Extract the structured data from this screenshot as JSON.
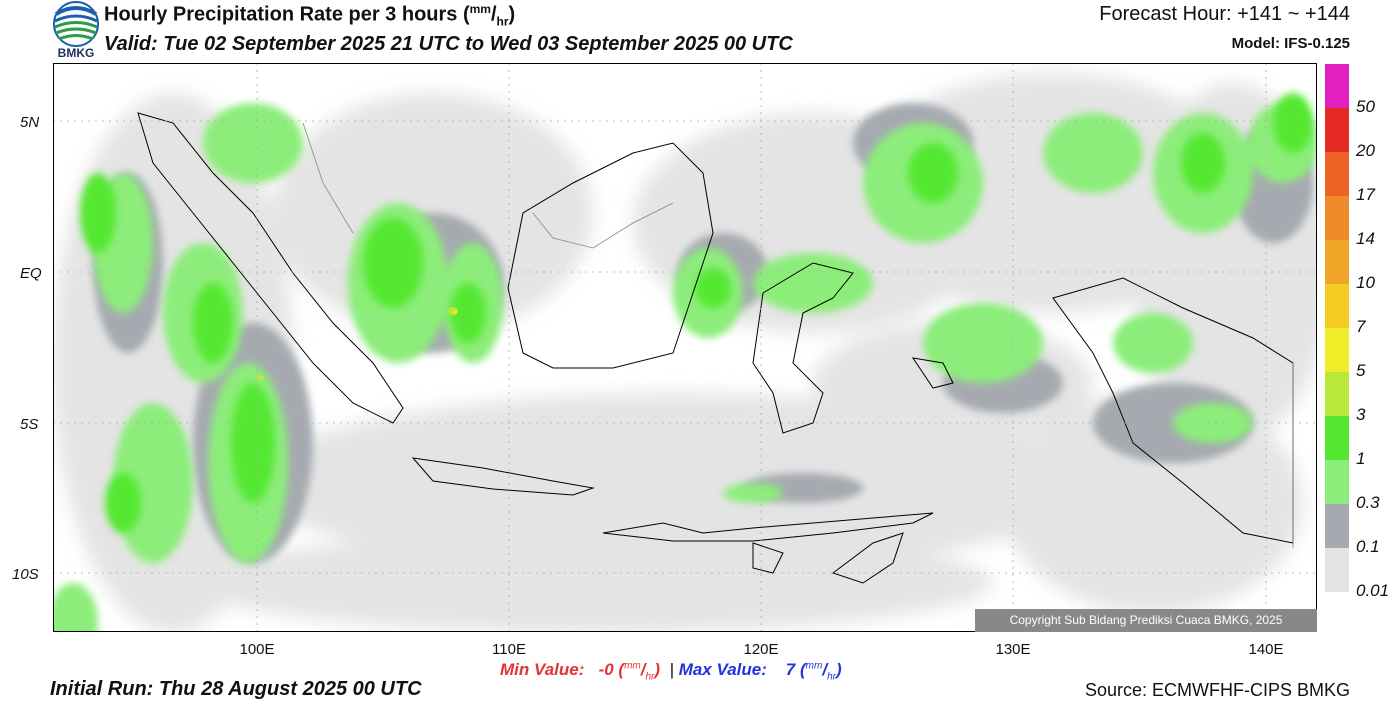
{
  "header": {
    "title": "Hourly Precipitation Rate per 3 hours",
    "title_unit_num": "mm",
    "title_unit_den": "hr",
    "valid": "Valid: Tue 02 September 2025 21 UTC to Wed 03 September 2025 00 UTC",
    "forecast_hour": "Forecast Hour: +141 ~ +144",
    "model": "Model: IFS-0.125",
    "logo_text": "BMKG"
  },
  "map": {
    "lat_labels": [
      "5N",
      "EQ",
      "5S",
      "10S"
    ],
    "lon_labels": [
      "100E",
      "110E",
      "120E",
      "130E",
      "140E"
    ],
    "copyright": "Copyright Sub Bidang Prediksi Cuaca BMKG, 2025"
  },
  "legend": {
    "levels": [
      "50",
      "20",
      "17",
      "14",
      "10",
      "7",
      "5",
      "3",
      "1",
      "0.3",
      "0.1",
      "0.01"
    ],
    "colors": [
      "#e020c0",
      "#e62a23",
      "#ec6325",
      "#f0892a",
      "#f0a428",
      "#f4cc22",
      "#f0ec28",
      "#b8e83a",
      "#55e832",
      "#8ced7a",
      "#a6aab0",
      "#e4e4e4"
    ]
  },
  "stats": {
    "min_label": "Min Value:",
    "min_value": "-0",
    "max_label": "Max Value:",
    "max_value": "7",
    "unit_num": "mm",
    "unit_den": "hr",
    "separator": "|"
  },
  "footer": {
    "initial_run": "Initial Run: Thu 28 August 2025 00 UTC",
    "source": "Source: ECMWFHF-CIPS BMKG"
  }
}
